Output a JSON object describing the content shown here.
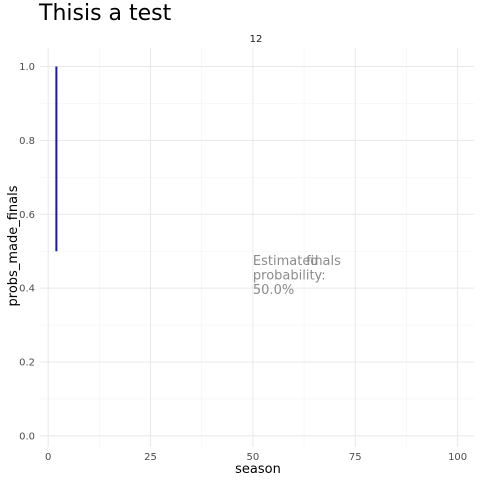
{
  "chart_data": {
    "type": "line",
    "title": "Thisis a test",
    "facet_label": "12",
    "xlabel": "season",
    "ylabel": "probs_made_finals",
    "xlim": [
      -2,
      104
    ],
    "ylim": [
      -0.03,
      1.05
    ],
    "x_ticks": [
      0,
      25,
      50,
      75,
      100
    ],
    "x_tick_labels": [
      "0",
      "25",
      "50",
      "75",
      "100"
    ],
    "y_ticks": [
      0.0,
      0.2,
      0.4,
      0.6,
      0.8,
      1.0
    ],
    "y_tick_labels": [
      "0.0",
      "0.2",
      "0.4",
      "0.6",
      "0.8",
      "1.0"
    ],
    "grid": true,
    "series": [
      {
        "x": [
          2,
          2
        ],
        "y": [
          0.5,
          1.0
        ],
        "color": "#1a1aa6"
      }
    ],
    "annotations": [
      {
        "x": 50,
        "y": 0.5,
        "lines": [
          "Estimated",
          "probability:",
          "50.0%"
        ]
      },
      {
        "x": 63,
        "y": 0.5,
        "lines": [
          "finals"
        ]
      }
    ]
  }
}
